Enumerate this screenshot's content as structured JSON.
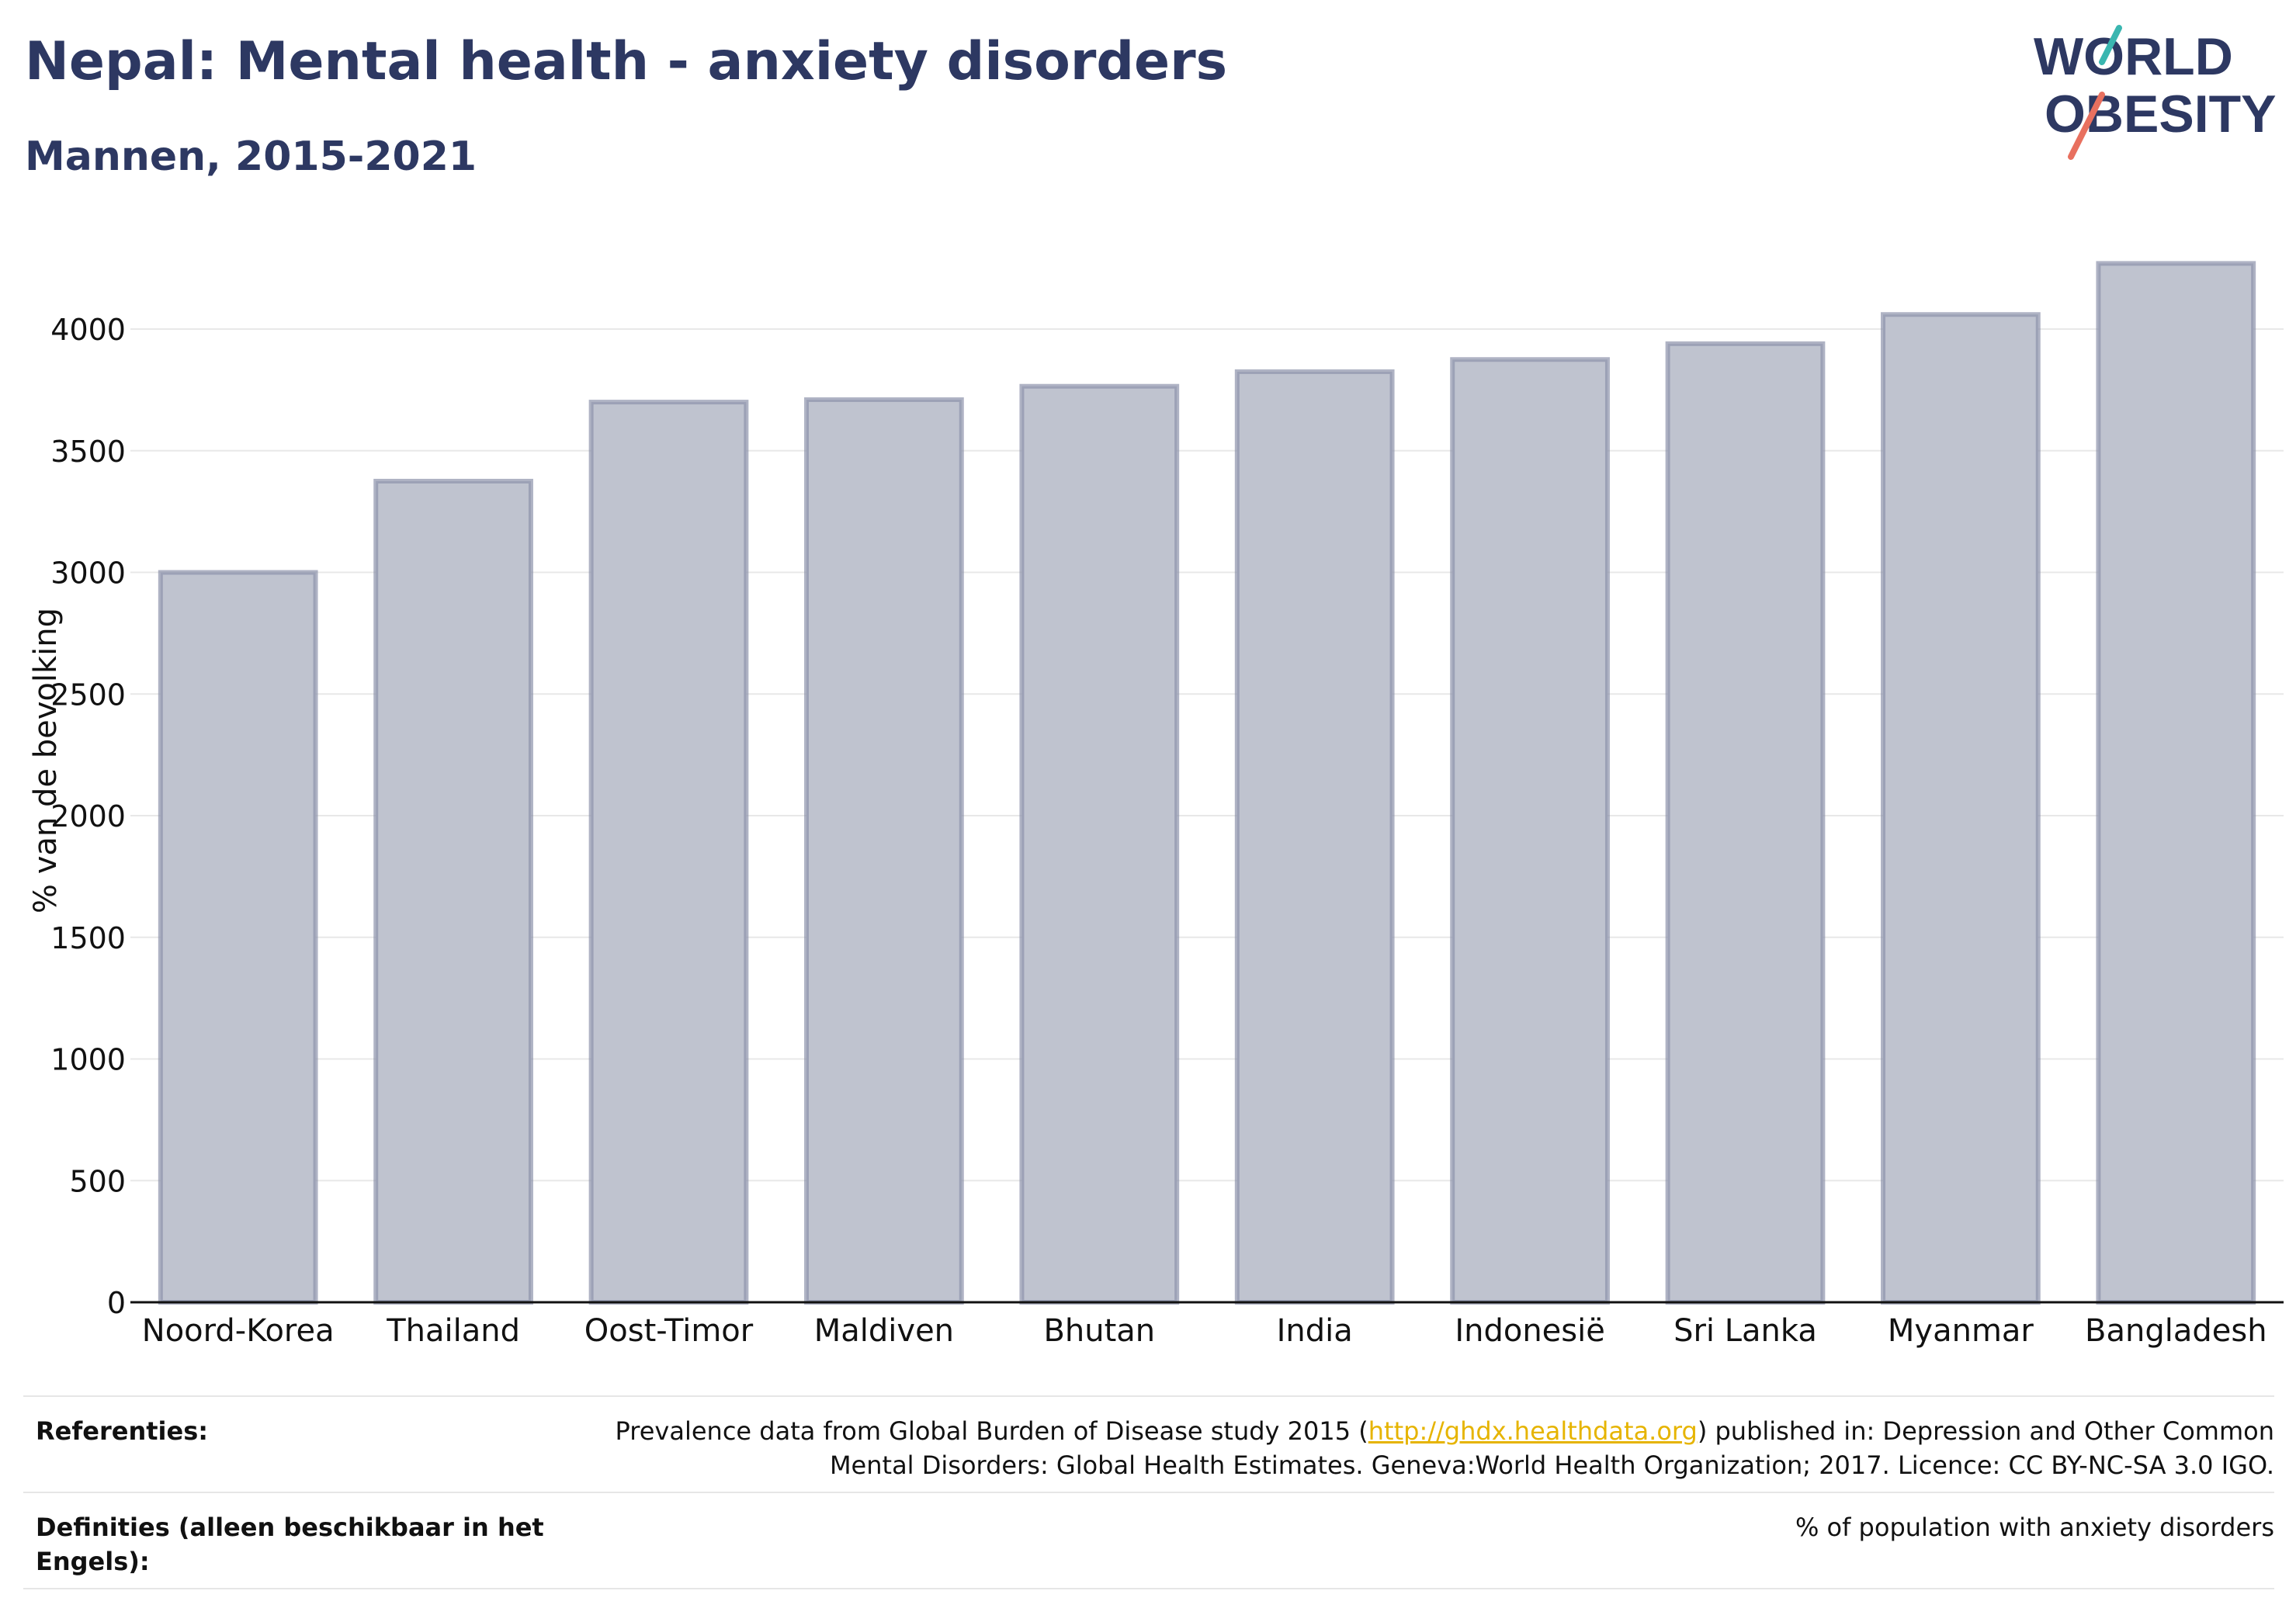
{
  "title": "Nepal: Mental health - anxiety disorders",
  "subtitle": "Mannen, 2015-2021",
  "logo": {
    "line1": "WORLD",
    "line2": "OBESITY"
  },
  "chart_data": {
    "type": "bar",
    "categories": [
      "Noord-Korea",
      "Thailand",
      "Oost-Timor",
      "Maldiven",
      "Bhutan",
      "India",
      "Indonesië",
      "Sri Lanka",
      "Myanmar",
      "Bangladesh"
    ],
    "values": [
      3000,
      3375,
      3700,
      3710,
      3765,
      3825,
      3875,
      3940,
      4060,
      4270
    ],
    "ylabel": "% van de bevolking",
    "xlabel": "",
    "ylim": [
      0,
      4300
    ],
    "yticks": [
      0,
      500,
      1000,
      1500,
      2000,
      2500,
      3000,
      3500,
      4000
    ],
    "grid": true,
    "colors": {
      "bar_fill": "#bfc3cf",
      "bar_stroke": "#8d93ab",
      "grid": "#e8e8e8",
      "axis": "#111111"
    }
  },
  "references": {
    "label": "Referenties:",
    "text_before": "Prevalence data from Global Burden of Disease study 2015 (",
    "link": "http://ghdx.healthdata.org",
    "text_after_line1": ") published in: Depression and Other Common",
    "line2": "Mental Disorders: Global Health Estimates. Geneva:World Health Organization; 2017. Licence: CC BY-NC-SA 3.0 IGO."
  },
  "definitions": {
    "label_line1": "Definities (alleen beschikbaar in het",
    "label_line2": "Engels):",
    "text": "% of population with anxiety disorders"
  }
}
